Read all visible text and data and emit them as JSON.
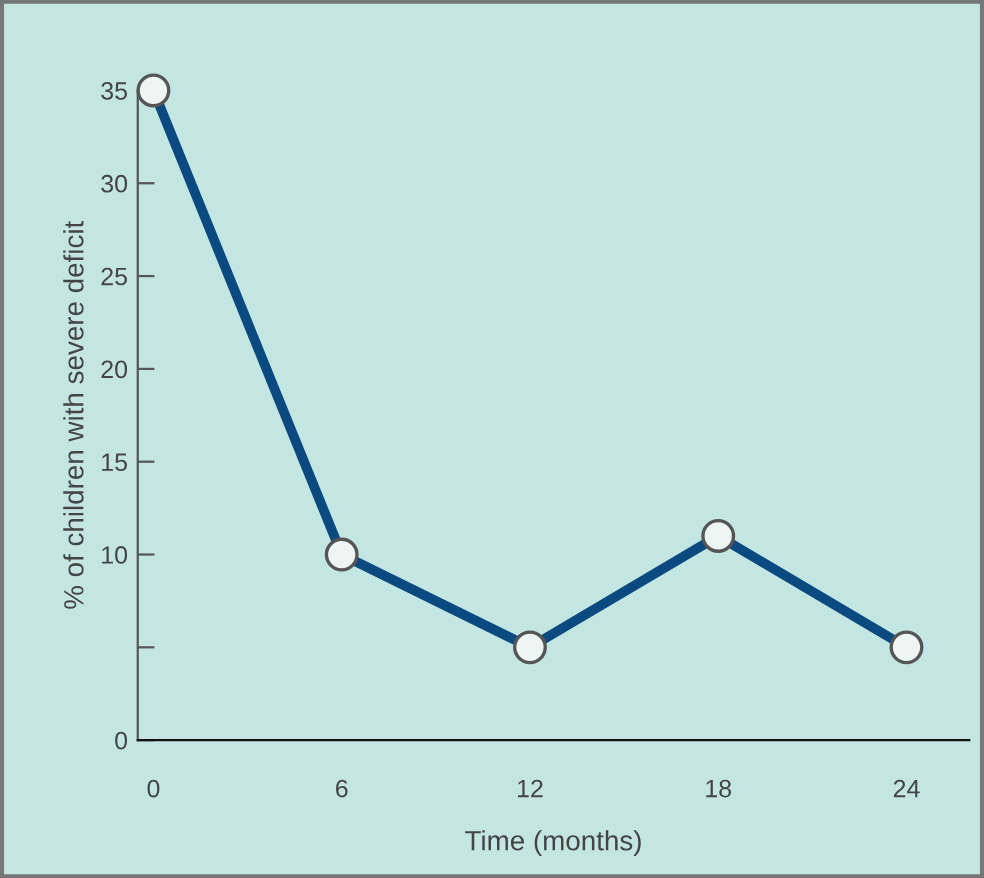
{
  "chart_data": {
    "type": "line",
    "xlabel": "Time (months)",
    "ylabel": "% of children with severe deficit",
    "x": [
      0,
      6,
      12,
      18,
      24
    ],
    "series": [
      {
        "color": "#0b4a80",
        "values": [
          35,
          10,
          5,
          11,
          5
        ]
      }
    ],
    "xlim": [
      -0.5,
      26
    ],
    "xticks": [
      0,
      6,
      12,
      18,
      24
    ],
    "ylim": [
      0,
      35
    ],
    "yticks": [
      0,
      {
        "value": 5,
        "label": null
      },
      10,
      15,
      20,
      25,
      30,
      35
    ],
    "marker": "circle",
    "line_style": "solid",
    "grid": false
  }
}
